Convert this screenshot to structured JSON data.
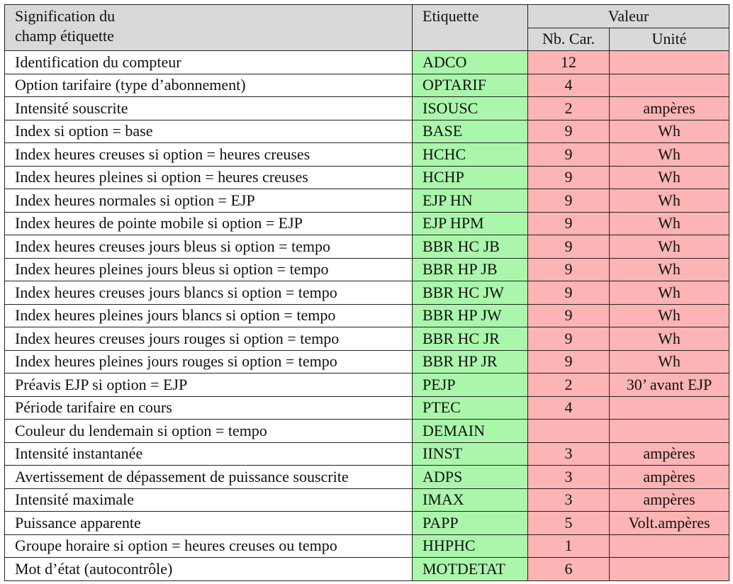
{
  "header": {
    "signification_line1": "Signification du",
    "signification_line2": "champ étiquette",
    "etiquette": "Etiquette",
    "valeur": "Valeur",
    "nb_car": "Nb. Car.",
    "unite": "Unité"
  },
  "rows": [
    {
      "signification": "Identification du compteur",
      "etiquette": "ADCO",
      "nb_car": "12",
      "unite": ""
    },
    {
      "signification": "Option tarifaire (type d’abonnement)",
      "etiquette": "OPTARIF",
      "nb_car": "4",
      "unite": ""
    },
    {
      "signification": "Intensité souscrite",
      "etiquette": "ISOUSC",
      "nb_car": "2",
      "unite": "ampères"
    },
    {
      "signification": "Index si option = base",
      "etiquette": "BASE",
      "nb_car": "9",
      "unite": "Wh"
    },
    {
      "signification": "Index heures creuses si option = heures creuses",
      "etiquette": "HCHC",
      "nb_car": "9",
      "unite": "Wh"
    },
    {
      "signification": "Index heures pleines si option = heures creuses",
      "etiquette": "HCHP",
      "nb_car": "9",
      "unite": "Wh"
    },
    {
      "signification": "Index heures normales si option = EJP",
      "etiquette": "EJP HN",
      "nb_car": "9",
      "unite": "Wh"
    },
    {
      "signification": "Index heures de pointe mobile si option = EJP",
      "etiquette": "EJP HPM",
      "nb_car": "9",
      "unite": "Wh"
    },
    {
      "signification": "Index heures creuses jours bleus si option = tempo",
      "etiquette": "BBR HC JB",
      "nb_car": "9",
      "unite": "Wh"
    },
    {
      "signification": "Index heures pleines jours bleus si option = tempo",
      "etiquette": "BBR HP JB",
      "nb_car": "9",
      "unite": "Wh"
    },
    {
      "signification": "Index heures creuses jours blancs si option = tempo",
      "etiquette": "BBR HC JW",
      "nb_car": "9",
      "unite": "Wh"
    },
    {
      "signification": "Index heures pleines jours blancs si option = tempo",
      "etiquette": "BBR HP JW",
      "nb_car": "9",
      "unite": "Wh"
    },
    {
      "signification": "Index heures creuses jours rouges si option = tempo",
      "etiquette": "BBR HC JR",
      "nb_car": "9",
      "unite": "Wh"
    },
    {
      "signification": "Index heures pleines jours rouges si option = tempo",
      "etiquette": "BBR HP JR",
      "nb_car": "9",
      "unite": "Wh"
    },
    {
      "signification": "Préavis EJP si option = EJP",
      "etiquette": "PEJP",
      "nb_car": "2",
      "unite": "30’ avant EJP"
    },
    {
      "signification": "Période tarifaire en cours",
      "etiquette": "PTEC",
      "nb_car": "4",
      "unite": ""
    },
    {
      "signification": "Couleur du lendemain si option = tempo",
      "etiquette": "DEMAIN",
      "nb_car": "",
      "unite": ""
    },
    {
      "signification": "Intensité instantanée",
      "etiquette": "IINST",
      "nb_car": "3",
      "unite": "ampères"
    },
    {
      "signification": "Avertissement de dépassement de puissance souscrite",
      "etiquette": "ADPS",
      "nb_car": "3",
      "unite": "ampères"
    },
    {
      "signification": "Intensité maximale",
      "etiquette": "IMAX",
      "nb_car": "3",
      "unite": "ampères"
    },
    {
      "signification": "Puissance apparente",
      "etiquette": "PAPP",
      "nb_car": "5",
      "unite": "Volt.ampères"
    },
    {
      "signification": "Groupe horaire si option = heures creuses ou tempo",
      "etiquette": "HHPHC",
      "nb_car": "1",
      "unite": ""
    },
    {
      "signification": "Mot d’état (autocontrôle)",
      "etiquette": "MOTDETAT",
      "nb_car": "6",
      "unite": ""
    }
  ]
}
